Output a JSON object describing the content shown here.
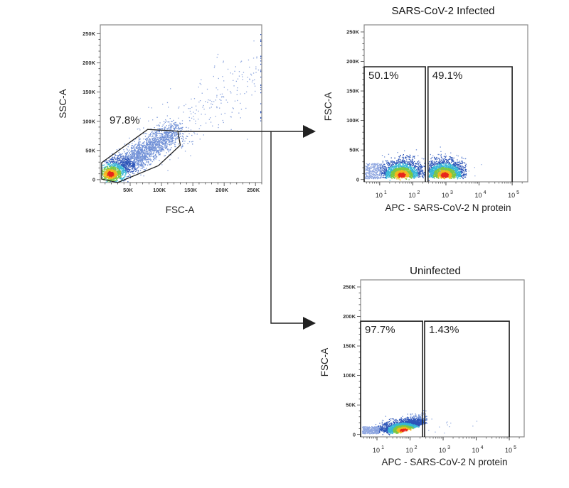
{
  "chart_data": [
    {
      "type": "scatter",
      "title": "",
      "xlabel": "FSC-A",
      "ylabel": "SSC-A",
      "xscale": "linear",
      "yscale": "linear",
      "xlim": [
        2300,
        260000
      ],
      "ylim": [
        -5000,
        265000
      ],
      "xticks": [
        {
          "v": 50000,
          "label": "50K"
        },
        {
          "v": 100000,
          "label": "100K"
        },
        {
          "v": 150000,
          "label": "150K"
        },
        {
          "v": 200000,
          "label": "200K"
        },
        {
          "v": 250000,
          "label": "250K"
        }
      ],
      "yticks": [
        {
          "v": 0,
          "label": "0"
        },
        {
          "v": 50000,
          "label": "50K"
        },
        {
          "v": 100000,
          "label": "100K"
        },
        {
          "v": 150000,
          "label": "150K"
        },
        {
          "v": 200000,
          "label": "200K"
        },
        {
          "v": 250000,
          "label": "250K"
        }
      ],
      "gates": [
        {
          "shape": "polygon",
          "label": "97.8%",
          "percent": 97.8,
          "points": [
            [
              4500,
              29000
            ],
            [
              78000,
              86000
            ],
            [
              126000,
              83000
            ],
            [
              130000,
              59000
            ],
            [
              95000,
              24000
            ],
            [
              30000,
              -5000
            ],
            [
              4500,
              1000
            ]
          ]
        }
      ],
      "colormap": "density (blue-cyan-green-yellow-red)"
    },
    {
      "type": "scatter",
      "title": "SARS-CoV-2 Infected",
      "xlabel": "APC - SARS-CoV-2 N protein",
      "ylabel": "FSC-A",
      "xscale": "log",
      "yscale": "linear",
      "xlim": [
        3.4,
        295000
      ],
      "ylim": [
        -4000,
        262000
      ],
      "xticks": [
        {
          "v": 10,
          "base": "10",
          "exp": "1"
        },
        {
          "v": 100,
          "base": "10",
          "exp": "2"
        },
        {
          "v": 1000,
          "base": "10",
          "exp": "3"
        },
        {
          "v": 10000,
          "base": "10",
          "exp": "4"
        },
        {
          "v": 100000,
          "base": "10",
          "exp": "5"
        }
      ],
      "yticks": [
        {
          "v": 0,
          "label": "0"
        },
        {
          "v": 50000,
          "label": "50K"
        },
        {
          "v": 100000,
          "label": "100K"
        },
        {
          "v": 150000,
          "label": "150K"
        },
        {
          "v": 200000,
          "label": "200K"
        },
        {
          "v": 250000,
          "label": "250K"
        }
      ],
      "gates": [
        {
          "shape": "rect",
          "label": "50.1%",
          "percent": 50.1,
          "x": [
            3.4,
            240
          ],
          "y": [
            -4000,
            191000
          ]
        },
        {
          "shape": "rect",
          "label": "49.1%",
          "percent": 49.1,
          "x": [
            288,
            100000
          ],
          "y": [
            -4000,
            191000
          ]
        }
      ]
    },
    {
      "type": "scatter",
      "title": "Uninfected",
      "xlabel": "APC - SARS-CoV-2 N protein",
      "ylabel": "FSC-A",
      "xscale": "log",
      "yscale": "linear",
      "xlim": [
        3.2,
        282000
      ],
      "ylim": [
        -4000,
        262000
      ],
      "xticks": [
        {
          "v": 10,
          "base": "10",
          "exp": "1"
        },
        {
          "v": 100,
          "base": "10",
          "exp": "2"
        },
        {
          "v": 1000,
          "base": "10",
          "exp": "3"
        },
        {
          "v": 10000,
          "base": "10",
          "exp": "4"
        },
        {
          "v": 100000,
          "base": "10",
          "exp": "5"
        }
      ],
      "yticks": [
        {
          "v": 0,
          "label": "0"
        },
        {
          "v": 50000,
          "label": "50K"
        },
        {
          "v": 100000,
          "label": "100K"
        },
        {
          "v": 150000,
          "label": "150K"
        },
        {
          "v": 200000,
          "label": "200K"
        },
        {
          "v": 250000,
          "label": "250K"
        }
      ],
      "gates": [
        {
          "shape": "rect",
          "label": "97.7%",
          "percent": 97.7,
          "x": [
            3.2,
            240
          ],
          "y": [
            -4000,
            192000
          ]
        },
        {
          "shape": "rect",
          "label": "1.43%",
          "percent": 1.43,
          "x": [
            275,
            100000
          ],
          "y": [
            -4000,
            192000
          ]
        }
      ]
    }
  ],
  "colors": {
    "gate": "#222222",
    "frame": "#888888",
    "density": [
      "#e8261c",
      "#f2b81e",
      "#7cc843",
      "#36b6d6",
      "#2d55b8",
      "#6f8fd6"
    ]
  }
}
